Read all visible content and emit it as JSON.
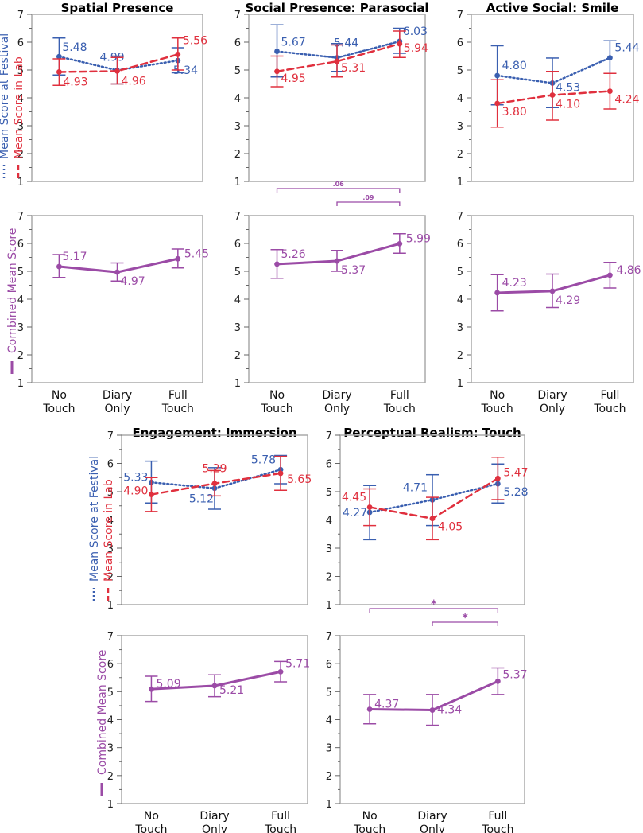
{
  "x_categories": [
    "No Touch",
    "Diary Only",
    "Full Touch"
  ],
  "colors": {
    "festival": "#3a5fb0",
    "lab": "#e0303e",
    "combined": "#9b4ba6",
    "axis": "#aaaaaa",
    "tick": "#666666"
  },
  "y_axis_labels": {
    "festival": "Mean Score at Festival",
    "lab": "Mean Score in Lab",
    "combined": "Combined Mean Score"
  },
  "chart_data": [
    {
      "type": "line",
      "title": "Spatial Presence",
      "ylim": [
        1,
        7
      ],
      "top": {
        "festival": {
          "values": [
            5.48,
            4.99,
            5.34
          ],
          "ci": [
            [
              4.82,
              6.15
            ],
            [
              4.5,
              5.5
            ],
            [
              4.9,
              5.8
            ]
          ]
        },
        "lab": {
          "values": [
            4.93,
            4.96,
            5.56
          ],
          "ci": [
            [
              4.45,
              5.4
            ],
            [
              4.5,
              5.45
            ],
            [
              5.0,
              6.15
            ]
          ]
        }
      },
      "bottom": {
        "combined": {
          "values": [
            5.17,
            4.97,
            5.45
          ],
          "ci": [
            [
              4.78,
              5.6
            ],
            [
              4.65,
              5.3
            ],
            [
              5.12,
              5.8
            ]
          ]
        },
        "brackets": []
      }
    },
    {
      "type": "line",
      "title": "Social Presence: Parasocial",
      "ylim": [
        1,
        7
      ],
      "top": {
        "festival": {
          "values": [
            5.67,
            5.44,
            6.03
          ],
          "ci": [
            [
              4.75,
              6.62
            ],
            [
              4.95,
              5.95
            ],
            [
              5.6,
              6.5
            ]
          ]
        },
        "lab": {
          "values": [
            4.95,
            5.31,
            5.94
          ],
          "ci": [
            [
              4.4,
              5.5
            ],
            [
              4.75,
              5.9
            ],
            [
              5.45,
              6.4
            ]
          ]
        }
      },
      "bottom": {
        "combined": {
          "values": [
            5.26,
            5.37,
            5.99
          ],
          "ci": [
            [
              4.75,
              5.78
            ],
            [
              5.0,
              5.75
            ],
            [
              5.65,
              6.35
            ]
          ]
        },
        "brackets": [
          {
            "from": 0,
            "to": 2,
            "label": ".06"
          },
          {
            "from": 1,
            "to": 2,
            "label": ".09"
          }
        ]
      }
    },
    {
      "type": "line",
      "title": "Active Social: Smile",
      "ylim": [
        1,
        7
      ],
      "top": {
        "festival": {
          "values": [
            4.8,
            4.53,
            5.44
          ],
          "ci": [
            [
              3.75,
              5.87
            ],
            [
              3.65,
              5.43
            ],
            [
              4.88,
              6.05
            ]
          ]
        },
        "lab": {
          "values": [
            3.8,
            4.1,
            4.24
          ],
          "ci": [
            [
              2.95,
              4.65
            ],
            [
              3.2,
              4.95
            ],
            [
              3.6,
              4.88
            ]
          ]
        }
      },
      "bottom": {
        "combined": {
          "values": [
            4.23,
            4.29,
            4.86
          ],
          "ci": [
            [
              3.58,
              4.88
            ],
            [
              3.7,
              4.9
            ],
            [
              4.4,
              5.32
            ]
          ]
        },
        "brackets": []
      }
    },
    {
      "type": "line",
      "title": "Engagement: Immersion",
      "ylim": [
        1,
        7
      ],
      "top": {
        "festival": {
          "values": [
            5.33,
            5.12,
            5.78
          ],
          "ci": [
            [
              4.6,
              6.08
            ],
            [
              4.38,
              5.85
            ],
            [
              5.28,
              6.28
            ]
          ]
        },
        "lab": {
          "values": [
            4.9,
            5.29,
            5.65
          ],
          "ci": [
            [
              4.3,
              5.5
            ],
            [
              4.85,
              5.75
            ],
            [
              5.05,
              6.25
            ]
          ]
        }
      },
      "bottom": {
        "combined": {
          "values": [
            5.09,
            5.21,
            5.71
          ],
          "ci": [
            [
              4.65,
              5.55
            ],
            [
              4.82,
              5.6
            ],
            [
              5.35,
              6.08
            ]
          ]
        },
        "brackets": []
      }
    },
    {
      "type": "line",
      "title": "Perceptual Realism: Touch",
      "ylim": [
        1,
        7
      ],
      "top": {
        "festival": {
          "values": [
            4.27,
            4.71,
            5.28
          ],
          "ci": [
            [
              3.3,
              5.22
            ],
            [
              3.8,
              5.6
            ],
            [
              4.6,
              5.98
            ]
          ]
        },
        "lab": {
          "values": [
            4.45,
            4.05,
            5.47
          ],
          "ci": [
            [
              3.8,
              5.1
            ],
            [
              3.3,
              4.8
            ],
            [
              4.72,
              6.22
            ]
          ]
        }
      },
      "bottom": {
        "combined": {
          "values": [
            4.37,
            4.34,
            5.37
          ],
          "ci": [
            [
              3.85,
              4.9
            ],
            [
              3.8,
              4.9
            ],
            [
              4.9,
              5.85
            ]
          ]
        },
        "brackets": [
          {
            "from": 0,
            "to": 2,
            "label": "*"
          },
          {
            "from": 1,
            "to": 2,
            "label": "*"
          }
        ]
      }
    }
  ]
}
